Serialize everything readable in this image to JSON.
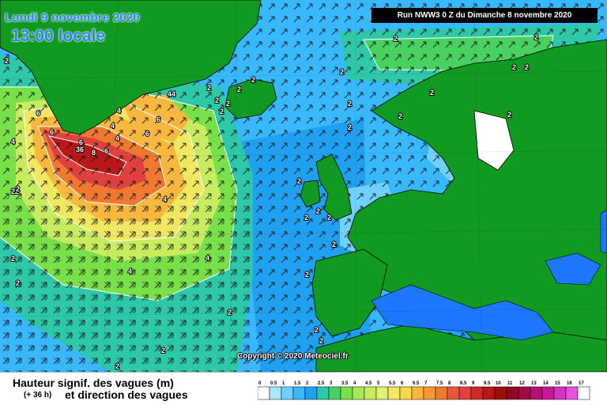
{
  "header": {
    "date": "Lundi 9 novembre 2020",
    "time": "13:00 locale",
    "run": "Run NWW3 0 Z du Dimanche 8 novembre 2020"
  },
  "copyright": "Copyright © 2020 Meteociel.fr",
  "legend": {
    "title": "Hauteur signif. des vagues (m)",
    "lead_time": "(+ 36 h)",
    "subtitle": "et direction des vagues",
    "steps": [
      "0",
      "0.5",
      "1",
      "1.5",
      "2",
      "2.5",
      "3",
      "3.5",
      "4",
      "4.5",
      "5",
      "5.5",
      "6",
      "6.5",
      "7",
      "7.5",
      "8",
      "8.5",
      "9",
      "9.5",
      "10",
      "11",
      "12",
      "13",
      "14",
      "15",
      "16",
      "17"
    ],
    "colors": [
      "#ffffff",
      "#a8e8ff",
      "#70d0ff",
      "#38b8ff",
      "#20a0f0",
      "#2cc8a8",
      "#48d060",
      "#78e048",
      "#a8e858",
      "#c8ec60",
      "#e0f070",
      "#f0e860",
      "#f8d848",
      "#f8b840",
      "#f89830",
      "#f07830",
      "#e85838",
      "#e04040",
      "#d02828",
      "#b81818",
      "#a00c0c",
      "#900820",
      "#a00848",
      "#b81070",
      "#c81898",
      "#d830c0",
      "#e850e0",
      "#ffffff"
    ]
  },
  "map_labels": [
    {
      "id": "a1",
      "text": "4"
    },
    {
      "id": "a2",
      "text": "2"
    },
    {
      "id": "a3",
      "text": "2"
    },
    {
      "id": "a4",
      "text": "2"
    },
    {
      "id": "a5",
      "text": "2"
    },
    {
      "id": "a6",
      "text": "2"
    },
    {
      "id": "a7",
      "text": "2"
    },
    {
      "id": "a8",
      "text": "2"
    },
    {
      "id": "a9",
      "text": "2"
    },
    {
      "id": "a10",
      "text": "2"
    },
    {
      "id": "a11",
      "text": "44"
    },
    {
      "id": "a12",
      "text": "6"
    },
    {
      "id": "a13",
      "text": "6"
    },
    {
      "id": "a14",
      "text": "4"
    },
    {
      "id": "a15",
      "text": "6"
    },
    {
      "id": "a16",
      "text": "4"
    },
    {
      "id": "a17",
      "text": "4"
    },
    {
      "id": "a18",
      "text": "6"
    },
    {
      "id": "a19",
      "text": "6"
    },
    {
      "id": "a20",
      "text": "36"
    },
    {
      "id": "a21",
      "text": "8"
    },
    {
      "id": "a22",
      "text": "6"
    },
    {
      "id": "a23",
      "text": "4"
    },
    {
      "id": "a24",
      "text": "22"
    },
    {
      "id": "a25",
      "text": "4"
    },
    {
      "id": "a26",
      "text": "4"
    },
    {
      "id": "a27",
      "text": "2"
    },
    {
      "id": "a28",
      "text": "2"
    },
    {
      "id": "a29",
      "text": "2"
    },
    {
      "id": "a30",
      "text": "2"
    },
    {
      "id": "a31",
      "text": "2"
    },
    {
      "id": "a32",
      "text": "2"
    },
    {
      "id": "a33",
      "text": "2"
    },
    {
      "id": "a34",
      "text": "2"
    },
    {
      "id": "a35",
      "text": "2"
    },
    {
      "id": "a36",
      "text": "2"
    },
    {
      "id": "a37",
      "text": "2"
    },
    {
      "id": "a38",
      "text": "2"
    },
    {
      "id": "a39",
      "text": "2"
    },
    {
      "id": "a40",
      "text": "2"
    },
    {
      "id": "a41",
      "text": "2"
    },
    {
      "id": "a42",
      "text": "2"
    },
    {
      "id": "a43",
      "text": "2"
    },
    {
      "id": "a44",
      "text": "2"
    },
    {
      "id": "a45",
      "text": "2"
    },
    {
      "id": "a46",
      "text": "2"
    },
    {
      "id": "a47",
      "text": "2"
    },
    {
      "id": "a48",
      "text": "2"
    }
  ]
}
